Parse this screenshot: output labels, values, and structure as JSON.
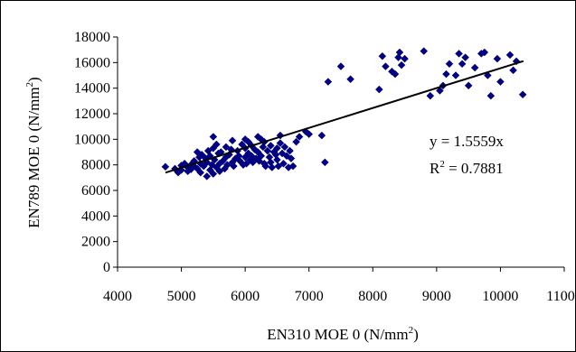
{
  "chart_data": {
    "type": "scatter",
    "title": "",
    "xlabel": "EN310 MOE 0 (N/mm",
    "xlabel_sup": "2",
    "xlabel_tail": ")",
    "ylabel": "EN789 MOE 0 (N/mm",
    "ylabel_sup": "2",
    "ylabel_tail": ")",
    "xlim": [
      4000,
      11000
    ],
    "ylim": [
      0,
      18000
    ],
    "xticks": [
      "4000",
      "5000",
      "6000",
      "7000",
      "8000",
      "9000",
      "10000",
      "11000"
    ],
    "yticks": [
      "0",
      "2000",
      "4000",
      "6000",
      "8000",
      "10000",
      "12000",
      "14000",
      "16000",
      "18000"
    ],
    "grid": false,
    "legend": "none",
    "marker": "diamond",
    "series_color": "#000080",
    "trendline": {
      "slope": 1.5559,
      "x_range": [
        4750,
        10360
      ],
      "color": "#000000",
      "equation_label": "y = 1.5559x",
      "r2_prefix": "R",
      "r2_sup": "2",
      "r2_value": " = 0.7881"
    },
    "points": [
      [
        4750,
        7850
      ],
      [
        4900,
        7700
      ],
      [
        4950,
        7400
      ],
      [
        5000,
        7950
      ],
      [
        5000,
        7600
      ],
      [
        5050,
        8100
      ],
      [
        5100,
        7800
      ],
      [
        5100,
        7500
      ],
      [
        5150,
        8000
      ],
      [
        5150,
        7650
      ],
      [
        5200,
        8300
      ],
      [
        5200,
        7900
      ],
      [
        5250,
        9000
      ],
      [
        5250,
        7700
      ],
      [
        5280,
        8600
      ],
      [
        5300,
        8100
      ],
      [
        5300,
        7400
      ],
      [
        5320,
        8800
      ],
      [
        5350,
        7900
      ],
      [
        5380,
        8500
      ],
      [
        5400,
        7100
      ],
      [
        5400,
        8200
      ],
      [
        5420,
        9100
      ],
      [
        5450,
        7600
      ],
      [
        5450,
        8700
      ],
      [
        5480,
        8000
      ],
      [
        5500,
        10200
      ],
      [
        5500,
        7300
      ],
      [
        5500,
        9300
      ],
      [
        5520,
        8400
      ],
      [
        5550,
        7800
      ],
      [
        5550,
        9600
      ],
      [
        5580,
        8900
      ],
      [
        5600,
        7500
      ],
      [
        5600,
        8100
      ],
      [
        5620,
        9000
      ],
      [
        5650,
        8300
      ],
      [
        5680,
        7700
      ],
      [
        5700,
        9400
      ],
      [
        5700,
        8600
      ],
      [
        5720,
        8000
      ],
      [
        5750,
        8800
      ],
      [
        5780,
        9200
      ],
      [
        5800,
        8200
      ],
      [
        5800,
        9900
      ],
      [
        5820,
        7900
      ],
      [
        5850,
        8500
      ],
      [
        5880,
        9100
      ],
      [
        5900,
        8700
      ],
      [
        5920,
        8300
      ],
      [
        5950,
        9600
      ],
      [
        5970,
        8000
      ],
      [
        6000,
        10000
      ],
      [
        6000,
        9300
      ],
      [
        6000,
        8600
      ],
      [
        6020,
        8100
      ],
      [
        6050,
        9800
      ],
      [
        6050,
        8900
      ],
      [
        6080,
        8400
      ],
      [
        6100,
        9500
      ],
      [
        6100,
        8700
      ],
      [
        6120,
        8200
      ],
      [
        6150,
        9200
      ],
      [
        6170,
        8500
      ],
      [
        6200,
        10200
      ],
      [
        6200,
        9000
      ],
      [
        6220,
        8300
      ],
      [
        6250,
        10000
      ],
      [
        6250,
        8700
      ],
      [
        6280,
        9400
      ],
      [
        6300,
        8100
      ],
      [
        6300,
        9800
      ],
      [
        6320,
        7900
      ],
      [
        6350,
        9100
      ],
      [
        6380,
        8600
      ],
      [
        6400,
        9500
      ],
      [
        6400,
        8200
      ],
      [
        6420,
        7800
      ],
      [
        6450,
        9000
      ],
      [
        6480,
        8800
      ],
      [
        6500,
        9300
      ],
      [
        6500,
        8400
      ],
      [
        6520,
        7900
      ],
      [
        6550,
        10300
      ],
      [
        6550,
        9700
      ],
      [
        6580,
        8900
      ],
      [
        6600,
        8100
      ],
      [
        6620,
        9400
      ],
      [
        6650,
        8700
      ],
      [
        6680,
        7800
      ],
      [
        6700,
        9100
      ],
      [
        6720,
        8500
      ],
      [
        6750,
        7900
      ],
      [
        6800,
        9800
      ],
      [
        6850,
        10200
      ],
      [
        6950,
        10600
      ],
      [
        7000,
        10400
      ],
      [
        7200,
        10300
      ],
      [
        7250,
        8200
      ],
      [
        7300,
        14500
      ],
      [
        7500,
        15700
      ],
      [
        7650,
        14700
      ],
      [
        8100,
        13900
      ],
      [
        8150,
        16500
      ],
      [
        8200,
        15700
      ],
      [
        8300,
        15300
      ],
      [
        8350,
        15100
      ],
      [
        8400,
        16400
      ],
      [
        8420,
        16800
      ],
      [
        8450,
        15800
      ],
      [
        8500,
        16300
      ],
      [
        8800,
        16900
      ],
      [
        8900,
        13400
      ],
      [
        9050,
        13800
      ],
      [
        9100,
        14200
      ],
      [
        9150,
        15100
      ],
      [
        9200,
        15900
      ],
      [
        9300,
        15000
      ],
      [
        9350,
        16700
      ],
      [
        9400,
        15900
      ],
      [
        9450,
        16400
      ],
      [
        9500,
        14200
      ],
      [
        9600,
        15600
      ],
      [
        9700,
        16700
      ],
      [
        9750,
        16800
      ],
      [
        9800,
        15000
      ],
      [
        9850,
        13400
      ],
      [
        9950,
        16300
      ],
      [
        10000,
        14500
      ],
      [
        10150,
        16600
      ],
      [
        10200,
        15400
      ],
      [
        10250,
        16100
      ],
      [
        10350,
        13500
      ]
    ]
  }
}
